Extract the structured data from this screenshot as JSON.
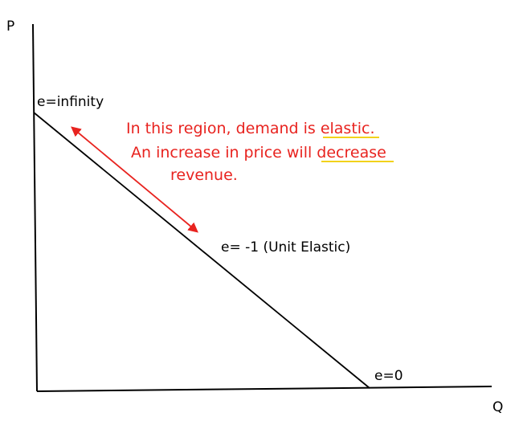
{
  "axes": {
    "y_label": "P",
    "x_label": "Q"
  },
  "points": {
    "top": "e=infinity",
    "middle": "e= -1 (Unit Elastic)",
    "bottom": "e=0"
  },
  "annotation": {
    "lines": [
      "In this region, demand is elastic.",
      "An increase in price will decrease",
      "revenue."
    ]
  }
}
